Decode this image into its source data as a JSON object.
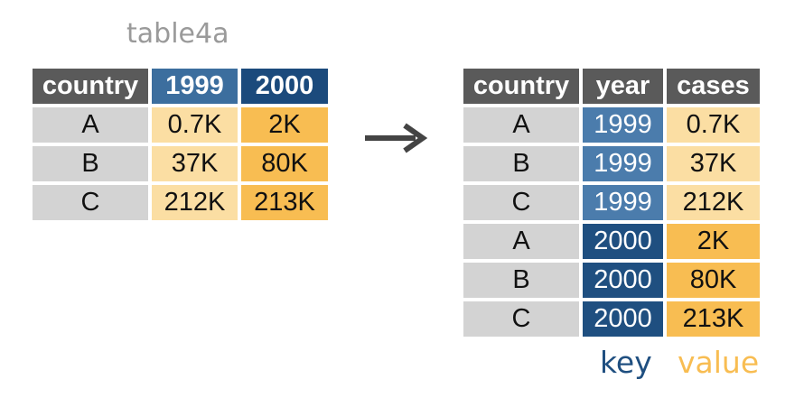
{
  "title": "table4a",
  "left_table": {
    "headers": [
      "country",
      "1999",
      "2000"
    ],
    "rows": [
      [
        "A",
        "0.7K",
        "2K"
      ],
      [
        "B",
        "37K",
        "80K"
      ],
      [
        "C",
        "212K",
        "213K"
      ]
    ]
  },
  "right_table": {
    "headers": [
      "country",
      "year",
      "cases"
    ],
    "rows": [
      [
        "A",
        "1999",
        "0.7K"
      ],
      [
        "B",
        "1999",
        "37K"
      ],
      [
        "C",
        "1999",
        "212K"
      ],
      [
        "A",
        "2000",
        "2K"
      ],
      [
        "B",
        "2000",
        "80K"
      ],
      [
        "C",
        "2000",
        "213K"
      ]
    ]
  },
  "legend": {
    "key": "key",
    "value": "value"
  },
  "colors": {
    "header_gray": "#5a5a5a",
    "header_blue": "#3c6e9e",
    "header_navy": "#1b4a7c",
    "cell_gray": "#d3d3d3",
    "light_orange": "#fbdea3",
    "orange": "#f8bd52",
    "blue": "#4b7cac",
    "navy": "#1f4f80"
  },
  "icons": {
    "arrow": "right-arrow-icon"
  }
}
